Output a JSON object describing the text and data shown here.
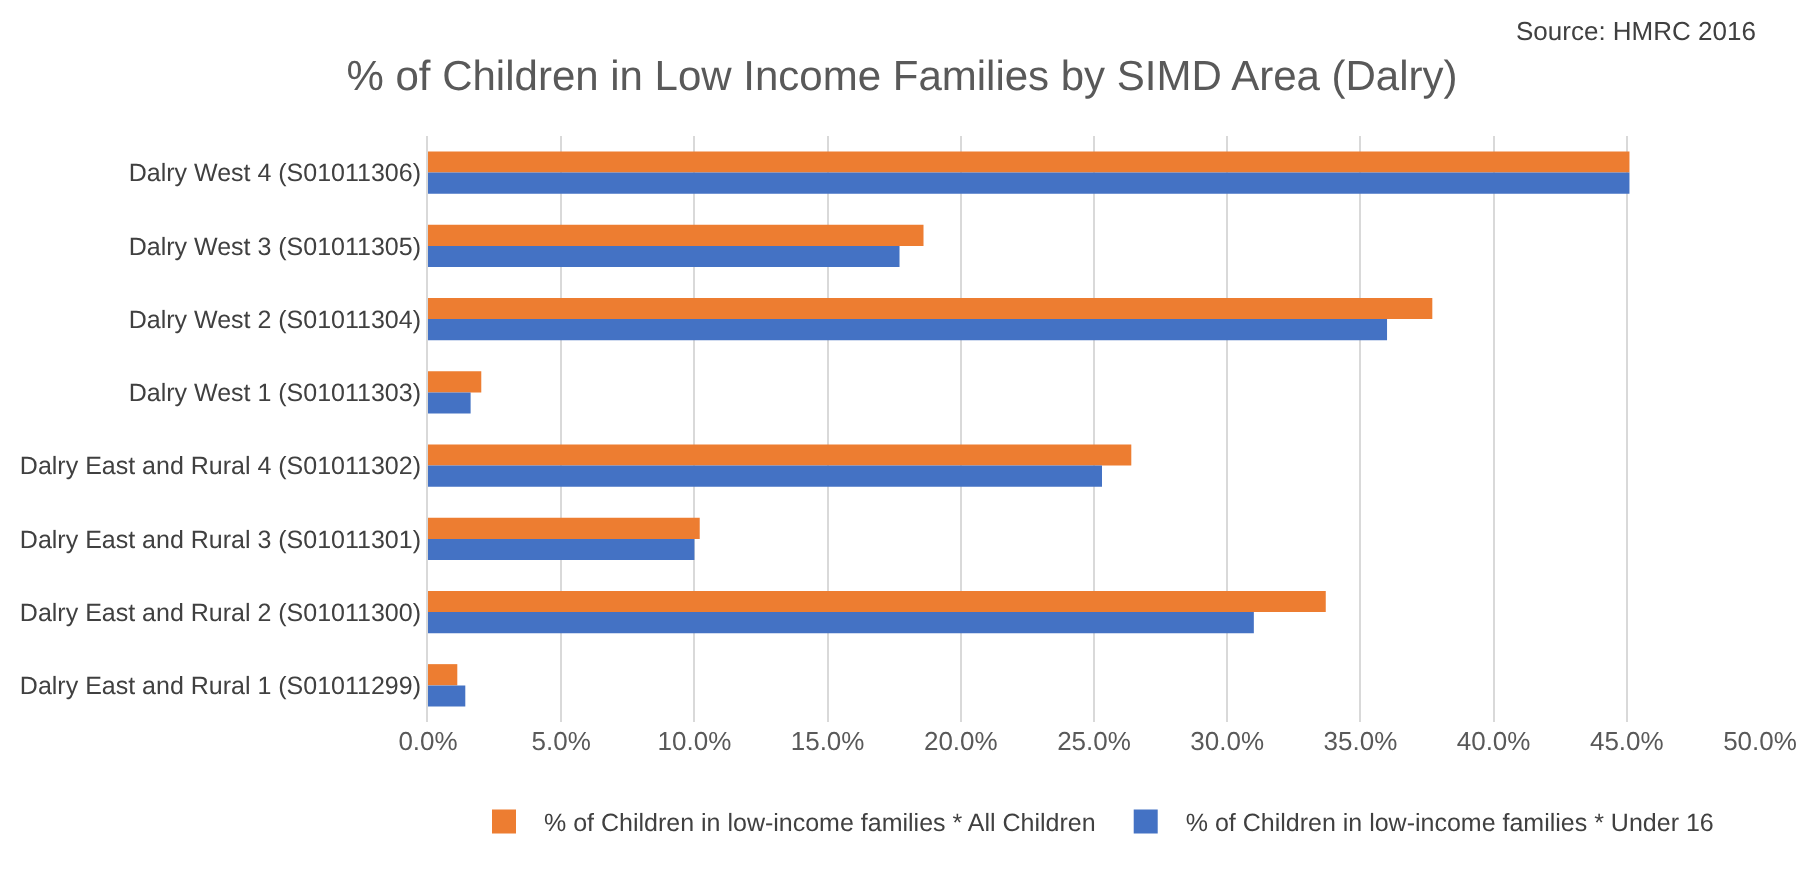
{
  "chart_data": {
    "type": "bar",
    "orientation": "horizontal",
    "title": "% of Children in Low Income Families by SIMD Area (Dalry)",
    "annotations": [
      "Source: HMRC 2016"
    ],
    "categories": [
      "Dalry West 4 (S01011306)",
      "Dalry West 3 (S01011305)",
      "Dalry West 2 (S01011304)",
      "Dalry West 1 (S01011303)",
      "Dalry East and Rural 4 (S01011302)",
      "Dalry East and Rural 3 (S01011301)",
      "Dalry East and Rural 2 (S01011300)",
      "Dalry East and Rural 1 (S01011299)"
    ],
    "series": [
      {
        "name": "% of Children in low-income families * All Children",
        "color": "#ed7d31",
        "values": [
          45.1,
          18.6,
          37.7,
          2.0,
          26.4,
          10.2,
          33.7,
          1.1
        ]
      },
      {
        "name": "% of Children in low-income families * Under 16",
        "color": "#4472c4",
        "values": [
          45.1,
          17.7,
          36.0,
          1.6,
          25.3,
          10.0,
          31.0,
          1.4
        ]
      }
    ],
    "xlim": [
      0,
      50
    ],
    "xticks": [
      {
        "value": 0,
        "label": "0.0%"
      },
      {
        "value": 5,
        "label": "5.0%"
      },
      {
        "value": 10,
        "label": "10.0%"
      },
      {
        "value": 15,
        "label": "15.0%"
      },
      {
        "value": 20,
        "label": "20.0%"
      },
      {
        "value": 25,
        "label": "25.0%"
      },
      {
        "value": 30,
        "label": "30.0%"
      },
      {
        "value": 35,
        "label": "35.0%"
      },
      {
        "value": 40,
        "label": "40.0%"
      },
      {
        "value": 45,
        "label": "45.0%"
      },
      {
        "value": 50,
        "label": "50.0%"
      }
    ],
    "grid": "x",
    "legend": "bottom"
  }
}
